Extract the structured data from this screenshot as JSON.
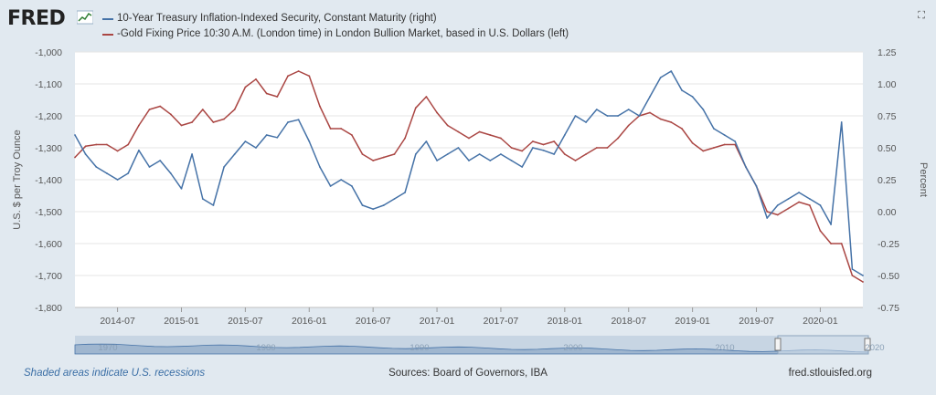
{
  "header": {
    "logo_text": "FRED",
    "logo_icon": "fred-chart-icon",
    "fullscreen_icon": "fullscreen-icon"
  },
  "legend": [
    {
      "label": "10-Year Treasury Inflation-Indexed Security, Constant Maturity (right)",
      "color": "#4572a7"
    },
    {
      "label": "-Gold Fixing Price 10:30 A.M. (London time) in London Bullion Market, based in U.S. Dollars (left)",
      "color": "#aa4643"
    }
  ],
  "footer": {
    "recessions_note": "Shaded areas indicate U.S. recessions",
    "sources": "Sources: Board of Governors, IBA",
    "site": "fred.stlouisfed.org"
  },
  "chart_data": {
    "type": "line",
    "ylabel_left": "U.S. $ per Troy Ounce",
    "ylabel_right": "Percent",
    "ylim_left": [
      -1800,
      -1000
    ],
    "ylim_right": [
      -0.75,
      1.25
    ],
    "yticks_left": [
      "-1,000",
      "-1,100",
      "-1,200",
      "-1,300",
      "-1,400",
      "-1,500",
      "-1,600",
      "-1,700",
      "-1,800"
    ],
    "yticks_right": [
      "1.25",
      "1.00",
      "0.75",
      "0.50",
      "0.25",
      "0.00",
      "-0.25",
      "-0.50",
      "-0.75"
    ],
    "xlim": [
      "2014-03",
      "2020-05"
    ],
    "xticks": [
      "2014-07",
      "2015-01",
      "2015-07",
      "2016-01",
      "2016-07",
      "2017-01",
      "2017-07",
      "2018-01",
      "2018-07",
      "2019-01",
      "2019-07",
      "2020-01"
    ],
    "grid": true,
    "series": [
      {
        "name": "10-Year Treasury Inflation-Indexed Security, Constant Maturity (right)",
        "axis": "right",
        "color": "#4572a7",
        "x": [
          "2014-03",
          "2014-04",
          "2014-05",
          "2014-06",
          "2014-07",
          "2014-08",
          "2014-09",
          "2014-10",
          "2014-11",
          "2014-12",
          "2015-01",
          "2015-02",
          "2015-03",
          "2015-04",
          "2015-05",
          "2015-06",
          "2015-07",
          "2015-08",
          "2015-09",
          "2015-10",
          "2015-11",
          "2015-12",
          "2016-01",
          "2016-02",
          "2016-03",
          "2016-04",
          "2016-05",
          "2016-06",
          "2016-07",
          "2016-08",
          "2016-09",
          "2016-10",
          "2016-11",
          "2016-12",
          "2017-01",
          "2017-02",
          "2017-03",
          "2017-04",
          "2017-05",
          "2017-06",
          "2017-07",
          "2017-08",
          "2017-09",
          "2017-10",
          "2017-11",
          "2017-12",
          "2018-01",
          "2018-02",
          "2018-03",
          "2018-04",
          "2018-05",
          "2018-06",
          "2018-07",
          "2018-08",
          "2018-09",
          "2018-10",
          "2018-11",
          "2018-12",
          "2019-01",
          "2019-02",
          "2019-03",
          "2019-04",
          "2019-05",
          "2019-06",
          "2019-07",
          "2019-08",
          "2019-09",
          "2019-10",
          "2019-11",
          "2019-12",
          "2020-01",
          "2020-02",
          "2020-03",
          "2020-04",
          "2020-05"
        ],
        "values": [
          0.6,
          0.45,
          0.35,
          0.3,
          0.25,
          0.3,
          0.48,
          0.35,
          0.4,
          0.3,
          0.18,
          0.45,
          0.1,
          0.05,
          0.35,
          0.45,
          0.55,
          0.5,
          0.6,
          0.58,
          0.7,
          0.72,
          0.55,
          0.35,
          0.2,
          0.25,
          0.2,
          0.05,
          0.02,
          0.05,
          0.1,
          0.15,
          0.45,
          0.55,
          0.4,
          0.45,
          0.5,
          0.4,
          0.45,
          0.4,
          0.45,
          0.4,
          0.35,
          0.5,
          0.48,
          0.45,
          0.6,
          0.75,
          0.7,
          0.8,
          0.75,
          0.75,
          0.8,
          0.75,
          0.9,
          1.05,
          1.1,
          0.95,
          0.9,
          0.8,
          0.65,
          0.6,
          0.55,
          0.35,
          0.2,
          -0.05,
          0.05,
          0.1,
          0.15,
          0.1,
          0.05,
          -0.1,
          0.7,
          -0.45,
          -0.5
        ]
      },
      {
        "name": "-Gold Fixing Price 10:30 A.M. (London time) in London Bullion Market, based in U.S. Dollars (left)",
        "axis": "left",
        "color": "#aa4643",
        "x": [
          "2014-03",
          "2014-04",
          "2014-05",
          "2014-06",
          "2014-07",
          "2014-08",
          "2014-09",
          "2014-10",
          "2014-11",
          "2014-12",
          "2015-01",
          "2015-02",
          "2015-03",
          "2015-04",
          "2015-05",
          "2015-06",
          "2015-07",
          "2015-08",
          "2015-09",
          "2015-10",
          "2015-11",
          "2015-12",
          "2016-01",
          "2016-02",
          "2016-03",
          "2016-04",
          "2016-05",
          "2016-06",
          "2016-07",
          "2016-08",
          "2016-09",
          "2016-10",
          "2016-11",
          "2016-12",
          "2017-01",
          "2017-02",
          "2017-03",
          "2017-04",
          "2017-05",
          "2017-06",
          "2017-07",
          "2017-08",
          "2017-09",
          "2017-10",
          "2017-11",
          "2017-12",
          "2018-01",
          "2018-02",
          "2018-03",
          "2018-04",
          "2018-05",
          "2018-06",
          "2018-07",
          "2018-08",
          "2018-09",
          "2018-10",
          "2018-11",
          "2018-12",
          "2019-01",
          "2019-02",
          "2019-03",
          "2019-04",
          "2019-05",
          "2019-06",
          "2019-07",
          "2019-08",
          "2019-09",
          "2019-10",
          "2019-11",
          "2019-12",
          "2020-01",
          "2020-02",
          "2020-03",
          "2020-04",
          "2020-05"
        ],
        "values": [
          -1330,
          -1295,
          -1290,
          -1290,
          -1310,
          -1290,
          -1230,
          -1180,
          -1170,
          -1195,
          -1230,
          -1220,
          -1180,
          -1220,
          -1210,
          -1180,
          -1110,
          -1085,
          -1130,
          -1140,
          -1075,
          -1060,
          -1075,
          -1170,
          -1240,
          -1240,
          -1260,
          -1320,
          -1340,
          -1330,
          -1320,
          -1270,
          -1175,
          -1140,
          -1190,
          -1230,
          -1250,
          -1270,
          -1250,
          -1260,
          -1270,
          -1300,
          -1310,
          -1280,
          -1290,
          -1280,
          -1320,
          -1340,
          -1320,
          -1300,
          -1300,
          -1270,
          -1230,
          -1200,
          -1190,
          -1210,
          -1220,
          -1240,
          -1285,
          -1310,
          -1300,
          -1290,
          -1290,
          -1360,
          -1420,
          -1500,
          -1510,
          -1490,
          -1470,
          -1480,
          -1560,
          -1600,
          -1600,
          -1700,
          -1720
        ]
      }
    ]
  },
  "navigator": {
    "labels": [
      "1970",
      "1980",
      "1990",
      "2000",
      "2010",
      "2020"
    ]
  }
}
